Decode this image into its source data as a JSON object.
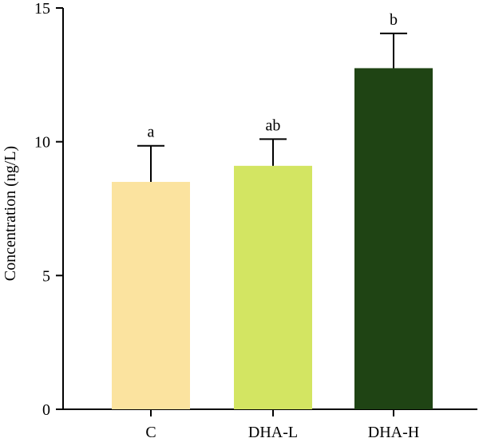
{
  "chart_data": {
    "type": "bar",
    "categories": [
      "C",
      "DHA-L",
      "DHA-H"
    ],
    "values": [
      8.5,
      9.1,
      12.75
    ],
    "errors": [
      1.35,
      1.0,
      1.3
    ],
    "significance": [
      "a",
      "ab",
      "b"
    ],
    "colors": [
      "#fbe39f",
      "#d3e562",
      "#1f4414"
    ],
    "title": "",
    "xlabel": "",
    "ylabel": "Concentration (ng/L)",
    "ylim": [
      0,
      15
    ],
    "yticks": [
      0,
      5,
      10,
      15
    ],
    "grid": false,
    "legend": "none"
  }
}
